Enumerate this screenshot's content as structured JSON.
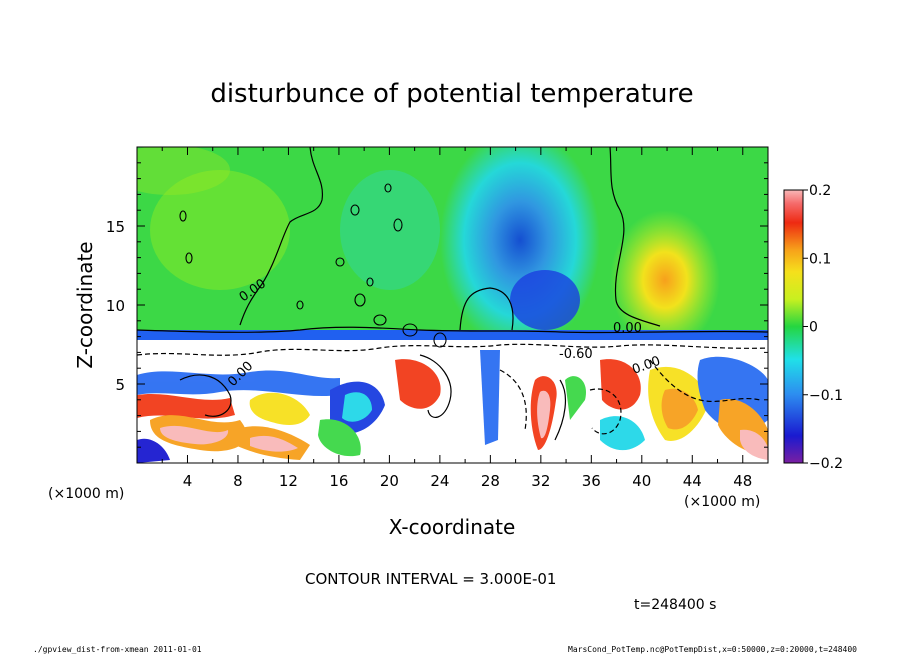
{
  "chart_data": {
    "type": "heatmap",
    "title": "disturbunce of potential temperature",
    "xlabel": "X-coordinate",
    "ylabel": "Z-coordinate",
    "x_unit": "(×1000 m)",
    "y_unit": "(×1000 m)",
    "xlim": [
      0,
      50
    ],
    "ylim": [
      0,
      20
    ],
    "x_ticks": [
      "4",
      "8",
      "12",
      "16",
      "20",
      "24",
      "28",
      "32",
      "36",
      "40",
      "44",
      "48"
    ],
    "y_ticks": [
      "5",
      "10",
      "15"
    ],
    "colorbar": {
      "range": [
        -0.2,
        0.2
      ],
      "tick_labels": [
        "0.2",
        "0.1",
        "0",
        "−0.1",
        "−0.2"
      ]
    },
    "contour_labels": [
      "0.00",
      "0.00",
      "0.00",
      "0.00",
      "-0.60"
    ],
    "contour_interval_text": "CONTOUR INTERVAL = 3.000E-01",
    "time_text": "t=248400 s",
    "footer_left": "./gpview_dist-from-xmean  2011-01-01",
    "footer_right": "MarsCond_PotTemp.nc@PotTempDist,x=0:50000,z=0:20000,t=248400"
  }
}
